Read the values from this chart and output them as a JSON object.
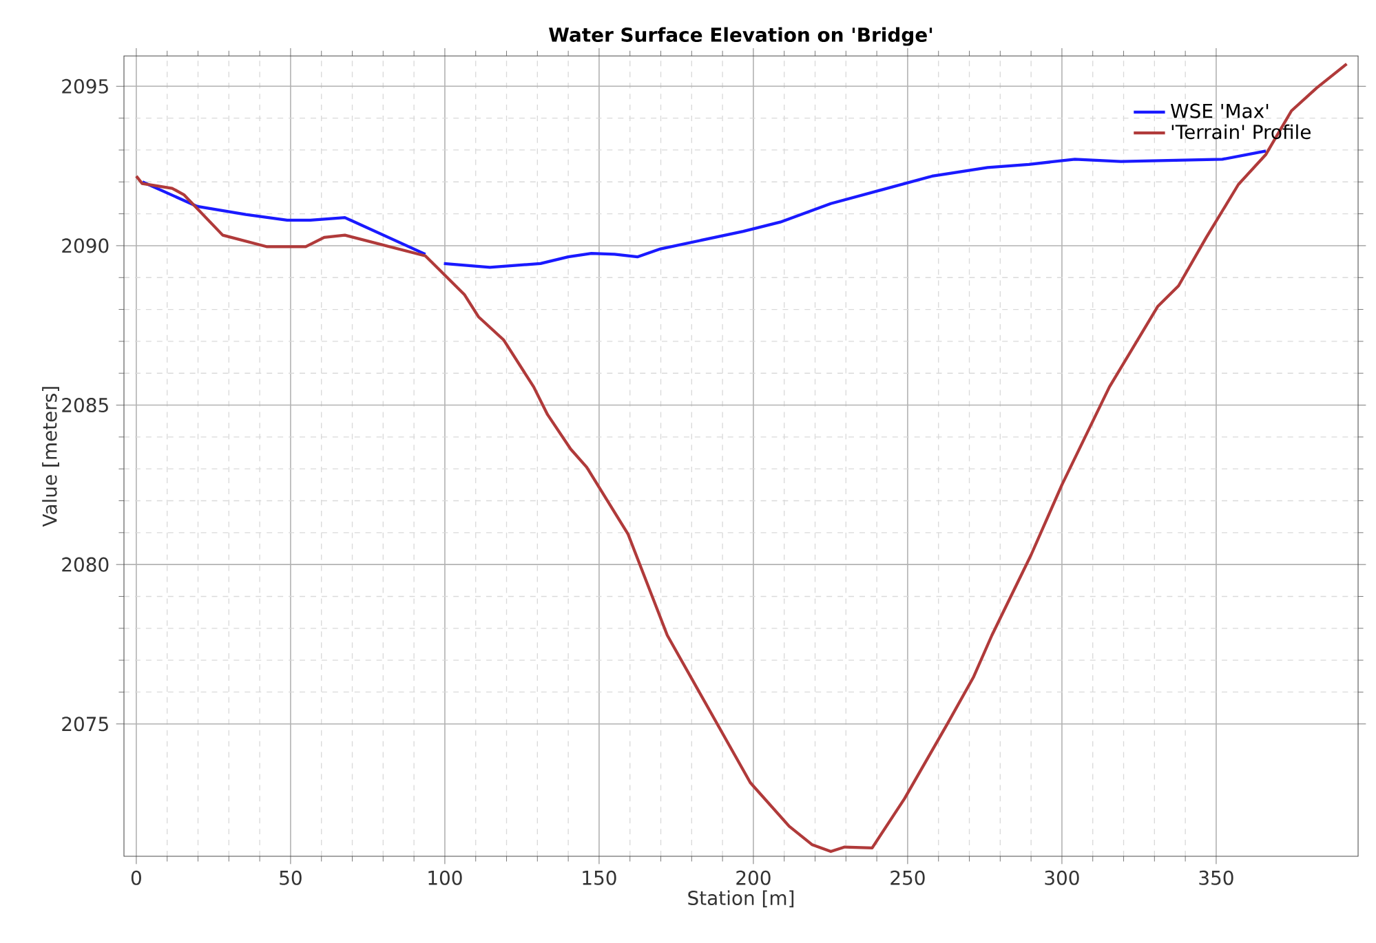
{
  "chart_data": {
    "type": "line",
    "title": "Water Surface Elevation on 'Bridge'",
    "xlabel": "Station [m]",
    "ylabel": "Value [meters]",
    "xlim": [
      -4,
      396
    ],
    "ylim": [
      2070.85,
      2095.95
    ],
    "xticks": [
      0,
      50,
      100,
      150,
      200,
      250,
      300,
      350
    ],
    "yticks": [
      2075,
      2080,
      2085,
      2090,
      2095
    ],
    "grid": true,
    "legend": "top right",
    "line_style": "solid",
    "marker": "none",
    "series": [
      {
        "name": "WSE 'Max'",
        "color": "#1a1aff",
        "x": [
          2,
          19.8,
          35.5,
          48.9,
          56.4,
          67.6,
          93.7,
          96,
          99.7,
          114.6,
          131,
          140,
          147.5,
          155,
          162.4,
          169.9,
          196.7,
          208.7,
          225.1,
          241.5,
          257.9,
          275.9,
          289.3,
          304.2,
          319.1,
          352,
          366.1
        ],
        "values": [
          2092.0,
          2091.23,
          2090.98,
          2090.8,
          2090.8,
          2090.88,
          2089.73,
          null,
          2089.44,
          2089.32,
          2089.44,
          2089.65,
          2089.76,
          2089.73,
          2089.65,
          2089.9,
          2090.45,
          2090.74,
          2091.32,
          2091.75,
          2092.18,
          2092.45,
          2092.55,
          2092.71,
          2092.64,
          2092.71,
          2092.97
        ]
      },
      {
        "name": "'Terrain' Profile",
        "color": "#b03a3a",
        "x": [
          0,
          1.9,
          11.6,
          15.4,
          28,
          42.2,
          54.9,
          60.9,
          67.6,
          93.7,
          106.4,
          110.9,
          119.1,
          128.8,
          133.3,
          140.8,
          146,
          159.4,
          172.1,
          199,
          211.6,
          219.1,
          225.1,
          229.6,
          238.5,
          249,
          263.1,
          271.4,
          277.3,
          290,
          300,
          315.4,
          331.1,
          337.8,
          346.8,
          357.2,
          366.1,
          374.4,
          382.6,
          392.3
        ],
        "values": [
          2092.18,
          2091.95,
          2091.8,
          2091.6,
          2090.33,
          2089.97,
          2089.97,
          2090.26,
          2090.33,
          2089.68,
          2088.46,
          2087.77,
          2087.04,
          2085.57,
          2084.7,
          2083.62,
          2083.05,
          2080.95,
          2077.78,
          2073.16,
          2071.79,
          2071.21,
          2071.0,
          2071.14,
          2071.11,
          2072.66,
          2075.04,
          2076.48,
          2077.78,
          2080.3,
          2082.5,
          2085.57,
          2088.1,
          2088.74,
          2090.26,
          2091.92,
          2092.86,
          2094.23,
          2094.95,
          2095.7
        ]
      }
    ]
  }
}
